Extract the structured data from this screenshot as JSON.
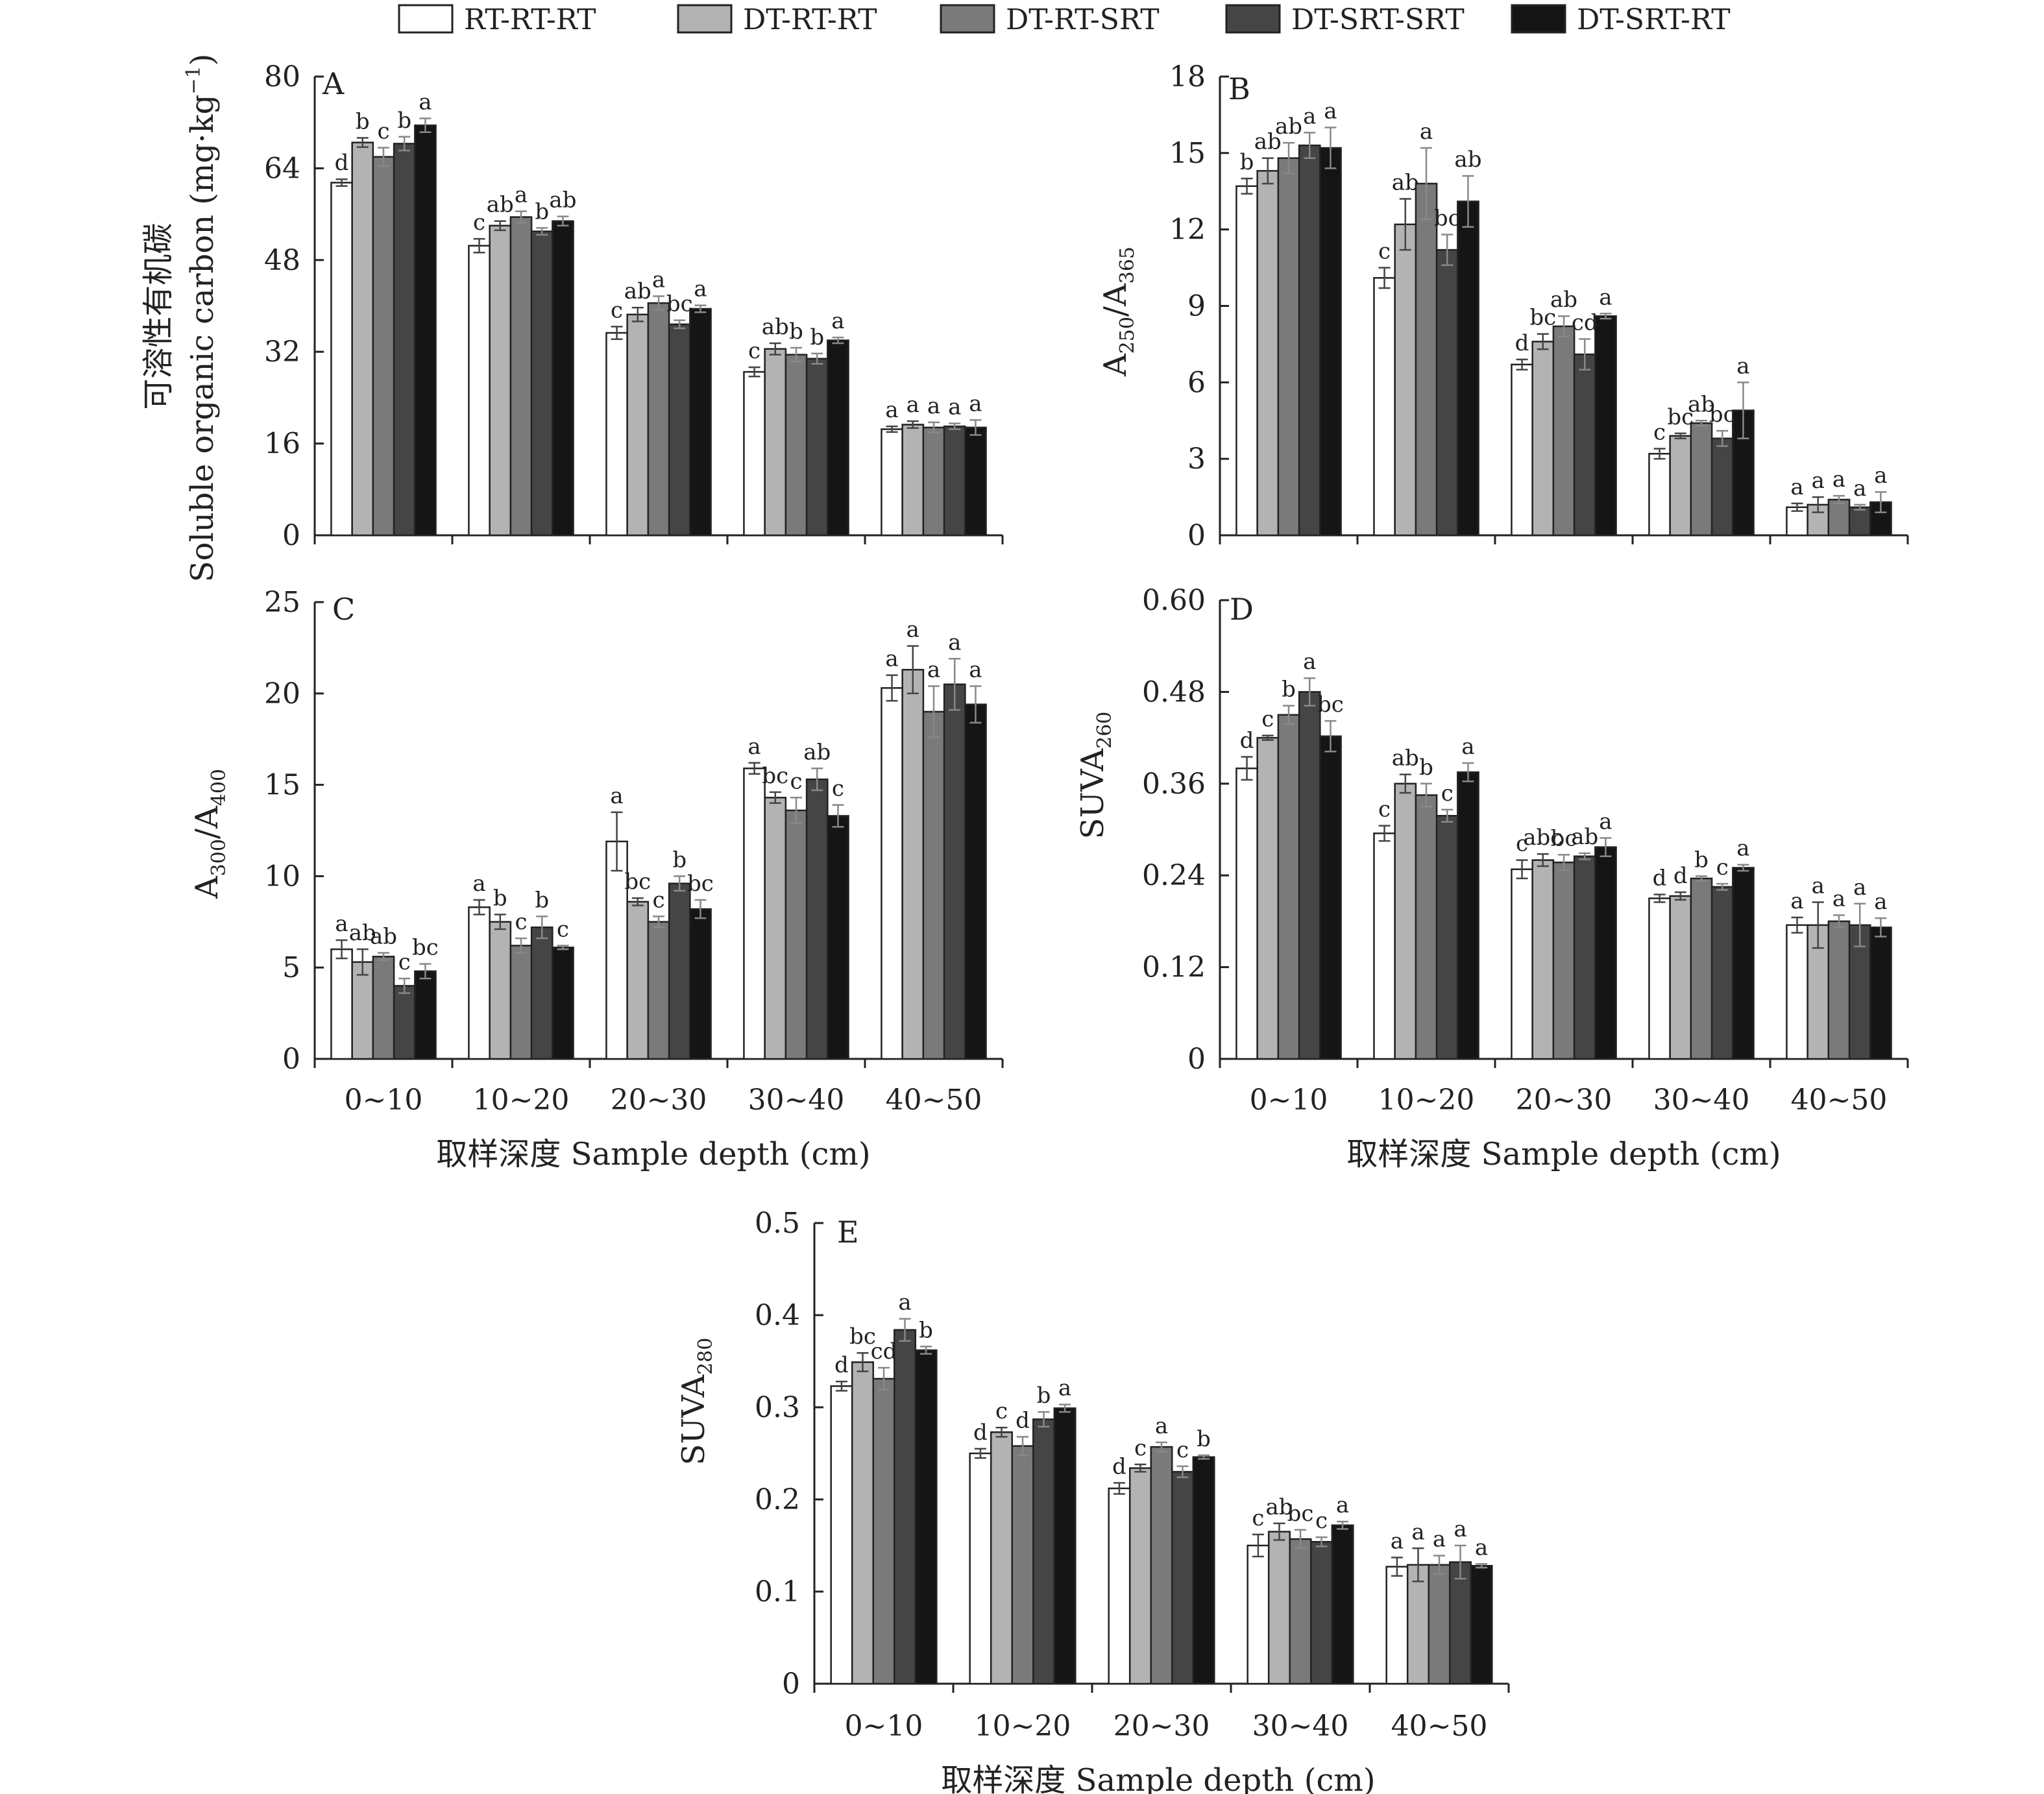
{
  "legend": [
    {
      "label": "RT-RT-RT",
      "color": "#ffffff"
    },
    {
      "label": "DT-RT-RT",
      "color": "#b3b3b3"
    },
    {
      "label": "DT-RT-SRT",
      "color": "#7a7a7a"
    },
    {
      "label": "DT-SRT-SRT",
      "color": "#454545"
    },
    {
      "label": "DT-SRT-RT",
      "color": "#151515"
    }
  ],
  "chart_data": [
    {
      "type": "bar",
      "panel": "A",
      "categories": [
        "0~10",
        "10~20",
        "20~30",
        "30~40",
        "40~50"
      ],
      "ylabel_cn": "可溶性有机碳",
      "ylabel_en": "Soluble organic carbon (mg·kg",
      "ylabel_sup": "−1",
      "ylabel_end": ")",
      "ylim": [
        0,
        80
      ],
      "yticks": [
        "0",
        "16",
        "32",
        "48",
        "64",
        "80"
      ],
      "series": [
        {
          "name": "RT-RT-RT",
          "values": [
            61.5,
            50.5,
            35.3,
            28.5,
            18.5
          ],
          "errors": [
            0.6,
            1.2,
            1.1,
            0.8,
            0.5
          ],
          "letters": [
            "d",
            "c",
            "c",
            "c",
            "a"
          ]
        },
        {
          "name": "DT-RT-RT",
          "values": [
            68.5,
            54.0,
            38.5,
            32.5,
            19.3
          ],
          "errors": [
            0.8,
            0.8,
            1.2,
            1.0,
            0.6
          ],
          "letters": [
            "b",
            "ab",
            "ab",
            "ab",
            "a"
          ]
        },
        {
          "name": "DT-RT-SRT",
          "values": [
            66.0,
            55.5,
            40.5,
            31.5,
            18.8
          ],
          "errors": [
            1.6,
            1.0,
            1.2,
            1.2,
            0.9
          ],
          "letters": [
            "c",
            "a",
            "a",
            "b",
            "a"
          ]
        },
        {
          "name": "DT-SRT-SRT",
          "values": [
            68.3,
            53.0,
            36.8,
            30.8,
            19.0
          ],
          "errors": [
            1.2,
            0.6,
            0.7,
            0.9,
            0.5
          ],
          "letters": [
            "b",
            "b",
            "bc",
            "b",
            "a"
          ]
        },
        {
          "name": "DT-SRT-RT",
          "values": [
            71.5,
            54.8,
            39.5,
            34.0,
            18.8
          ],
          "errors": [
            1.2,
            0.8,
            0.6,
            0.5,
            1.3
          ],
          "letters": [
            "a",
            "ab",
            "a",
            "a",
            "a"
          ]
        }
      ]
    },
    {
      "type": "bar",
      "panel": "B",
      "categories": [
        "0~10",
        "10~20",
        "20~30",
        "30~40",
        "40~50"
      ],
      "ylabel": "A",
      "ylabel_sub1": "250",
      "ylabel_mid": "/A",
      "ylabel_sub2": "365",
      "ylim": [
        0,
        18
      ],
      "yticks": [
        "0",
        "3",
        "6",
        "9",
        "12",
        "15",
        "18"
      ],
      "series": [
        {
          "name": "RT-RT-RT",
          "values": [
            13.7,
            10.1,
            6.7,
            3.2,
            1.1
          ],
          "errors": [
            0.3,
            0.4,
            0.2,
            0.2,
            0.15
          ],
          "letters": [
            "b",
            "c",
            "d",
            "c",
            "a"
          ]
        },
        {
          "name": "DT-RT-RT",
          "values": [
            14.3,
            12.2,
            7.6,
            3.9,
            1.2
          ],
          "errors": [
            0.5,
            1.0,
            0.3,
            0.1,
            0.3
          ],
          "letters": [
            "ab",
            "ab",
            "bc",
            "bc",
            "a"
          ]
        },
        {
          "name": "DT-RT-SRT",
          "values": [
            14.8,
            13.8,
            8.2,
            4.4,
            1.4
          ],
          "errors": [
            0.6,
            1.4,
            0.4,
            0.1,
            0.15
          ],
          "letters": [
            "ab",
            "a",
            "ab",
            "ab",
            "a"
          ]
        },
        {
          "name": "DT-SRT-SRT",
          "values": [
            15.3,
            11.2,
            7.1,
            3.8,
            1.1
          ],
          "errors": [
            0.5,
            0.6,
            0.6,
            0.3,
            0.1
          ],
          "letters": [
            "a",
            "bc",
            "cd",
            "bc",
            "a"
          ]
        },
        {
          "name": "DT-SRT-RT",
          "values": [
            15.2,
            13.1,
            8.6,
            4.9,
            1.3
          ],
          "errors": [
            0.8,
            1.0,
            0.1,
            1.1,
            0.4
          ],
          "letters": [
            "a",
            "ab",
            "a",
            "a",
            "a"
          ]
        }
      ]
    },
    {
      "type": "bar",
      "panel": "C",
      "categories": [
        "0~10",
        "10~20",
        "20~30",
        "30~40",
        "40~50"
      ],
      "xlabel": "取样深度 Sample depth (cm)",
      "ylabel": "A",
      "ylabel_sub1": "300",
      "ylabel_mid": "/A",
      "ylabel_sub2": "400",
      "ylim": [
        0,
        25
      ],
      "yticks": [
        "0",
        "5",
        "10",
        "15",
        "20",
        "25"
      ],
      "series": [
        {
          "name": "RT-RT-RT",
          "values": [
            6.0,
            8.3,
            11.9,
            15.9,
            20.3
          ],
          "errors": [
            0.5,
            0.4,
            1.6,
            0.3,
            0.7
          ],
          "letters": [
            "a",
            "a",
            "a",
            "a",
            "a"
          ]
        },
        {
          "name": "DT-RT-RT",
          "values": [
            5.3,
            7.5,
            8.6,
            14.3,
            21.3
          ],
          "errors": [
            0.7,
            0.4,
            0.2,
            0.3,
            1.3
          ],
          "letters": [
            "ab",
            "b",
            "bc",
            "bc",
            "a"
          ]
        },
        {
          "name": "DT-RT-SRT",
          "values": [
            5.6,
            6.2,
            7.5,
            13.6,
            19.0
          ],
          "errors": [
            0.2,
            0.4,
            0.3,
            0.7,
            1.4
          ],
          "letters": [
            "ab",
            "c",
            "c",
            "c",
            "a"
          ]
        },
        {
          "name": "DT-SRT-SRT",
          "values": [
            4.0,
            7.2,
            9.6,
            15.3,
            20.5
          ],
          "errors": [
            0.4,
            0.6,
            0.4,
            0.6,
            1.4
          ],
          "letters": [
            "c",
            "b",
            "b",
            "ab",
            "a"
          ]
        },
        {
          "name": "DT-SRT-RT",
          "values": [
            4.8,
            6.1,
            8.2,
            13.3,
            19.4
          ],
          "errors": [
            0.4,
            0.1,
            0.5,
            0.6,
            1.0
          ],
          "letters": [
            "bc",
            "c",
            "bc",
            "c",
            "a"
          ]
        }
      ]
    },
    {
      "type": "bar",
      "panel": "D",
      "categories": [
        "0~10",
        "10~20",
        "20~30",
        "30~40",
        "40~50"
      ],
      "xlabel": "取样深度 Sample depth (cm)",
      "ylabel": "SUVA",
      "ylabel_sub1": "260",
      "ylim": [
        0,
        0.6
      ],
      "yticks": [
        "0",
        "0.12",
        "0.24",
        "0.36",
        "0.48",
        "0.60"
      ],
      "series": [
        {
          "name": "RT-RT-RT",
          "values": [
            0.38,
            0.295,
            0.248,
            0.21,
            0.175
          ],
          "errors": [
            0.015,
            0.01,
            0.012,
            0.005,
            0.01
          ],
          "letters": [
            "d",
            "c",
            "c",
            "d",
            "a"
          ]
        },
        {
          "name": "DT-RT-RT",
          "values": [
            0.42,
            0.36,
            0.26,
            0.213,
            0.175
          ],
          "errors": [
            0.003,
            0.012,
            0.008,
            0.005,
            0.03
          ],
          "letters": [
            "c",
            "ab",
            "abc",
            "d",
            "a"
          ]
        },
        {
          "name": "DT-RT-SRT",
          "values": [
            0.45,
            0.345,
            0.257,
            0.236,
            0.18
          ],
          "errors": [
            0.012,
            0.015,
            0.01,
            0.003,
            0.008
          ],
          "letters": [
            "b",
            "b",
            "bc",
            "b",
            "a"
          ]
        },
        {
          "name": "DT-SRT-SRT",
          "values": [
            0.48,
            0.318,
            0.265,
            0.225,
            0.175
          ],
          "errors": [
            0.018,
            0.008,
            0.004,
            0.004,
            0.028
          ],
          "letters": [
            "a",
            "c",
            "ab",
            "c",
            "a"
          ]
        },
        {
          "name": "DT-SRT-RT",
          "values": [
            0.422,
            0.375,
            0.277,
            0.25,
            0.172
          ],
          "errors": [
            0.02,
            0.012,
            0.012,
            0.004,
            0.012
          ],
          "letters": [
            "bc",
            "a",
            "a",
            "a",
            "a"
          ]
        }
      ]
    },
    {
      "type": "bar",
      "panel": "E",
      "categories": [
        "0~10",
        "10~20",
        "20~30",
        "30~40",
        "40~50"
      ],
      "xlabel": "取样深度 Sample depth (cm)",
      "ylabel": "SUVA",
      "ylabel_sub1": "280",
      "ylim": [
        0,
        0.5
      ],
      "yticks": [
        "0",
        "0.1",
        "0.2",
        "0.3",
        "0.4",
        "0.5"
      ],
      "series": [
        {
          "name": "RT-RT-RT",
          "values": [
            0.323,
            0.25,
            0.212,
            0.15,
            0.127
          ],
          "errors": [
            0.005,
            0.005,
            0.006,
            0.012,
            0.01
          ],
          "letters": [
            "d",
            "d",
            "d",
            "c",
            "a"
          ]
        },
        {
          "name": "DT-RT-RT",
          "values": [
            0.349,
            0.273,
            0.234,
            0.165,
            0.129
          ],
          "errors": [
            0.01,
            0.005,
            0.004,
            0.009,
            0.018
          ],
          "letters": [
            "bc",
            "c",
            "c",
            "ab",
            "a"
          ]
        },
        {
          "name": "DT-RT-SRT",
          "values": [
            0.331,
            0.258,
            0.257,
            0.157,
            0.129
          ],
          "errors": [
            0.012,
            0.01,
            0.005,
            0.01,
            0.01
          ],
          "letters": [
            "cd",
            "d",
            "a",
            "bc",
            "a"
          ]
        },
        {
          "name": "DT-SRT-SRT",
          "values": [
            0.384,
            0.287,
            0.23,
            0.154,
            0.132
          ],
          "errors": [
            0.012,
            0.008,
            0.006,
            0.005,
            0.018
          ],
          "letters": [
            "a",
            "b",
            "c",
            "c",
            "a"
          ]
        },
        {
          "name": "DT-SRT-RT",
          "values": [
            0.362,
            0.299,
            0.246,
            0.172,
            0.128
          ],
          "errors": [
            0.004,
            0.004,
            0.002,
            0.004,
            0.002
          ],
          "letters": [
            "b",
            "a",
            "b",
            "a",
            "a"
          ]
        }
      ]
    }
  ]
}
